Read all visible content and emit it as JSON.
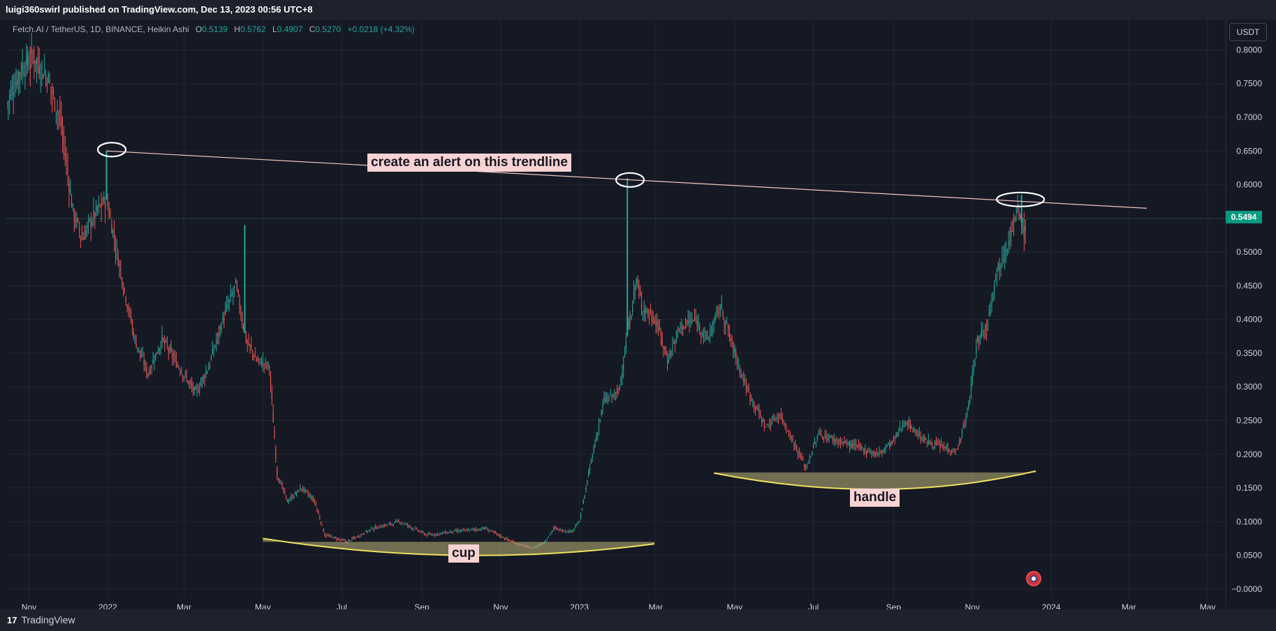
{
  "header": {
    "text": "luigi360swirl published on TradingView.com, Dec 13, 2023 00:56 UTC+8"
  },
  "legend": {
    "symbol": "Fetch.AI / TetherUS, 1D, BINANCE, Heikin Ashi",
    "o_label": "O",
    "o_value": "0.5139",
    "h_label": "H",
    "h_value": "0.5762",
    "l_label": "L",
    "l_value": "0.4907",
    "c_label": "C",
    "c_value": "0.5270",
    "change": "+0.0218 (+4.32%)"
  },
  "currency_button": "USDT",
  "last_price": "0.5494",
  "annotations": {
    "trendline_note": "create an alert on this trendline",
    "cup_label": "cup",
    "handle_label": "handle"
  },
  "footer": {
    "brand": "TradingView",
    "logo": "17"
  },
  "colors": {
    "up": "#26a69a",
    "down": "#ef5350",
    "background": "#151924",
    "note_bg": "#f9d3d3",
    "price_tag": "#089981"
  },
  "chart_data": {
    "type": "candlestick",
    "title": "Fetch.AI / TetherUS, 1D, BINANCE, Heikin Ashi",
    "y_ticks": [
      "0.8000",
      "0.7500",
      "0.7000",
      "0.6500",
      "0.6000",
      "0.5500",
      "0.5000",
      "0.4500",
      "0.4000",
      "0.3500",
      "0.3000",
      "0.2500",
      "0.2000",
      "0.1500",
      "0.1000",
      "0.0500",
      "−0.0000"
    ],
    "y_tick_values": [
      0.8,
      0.75,
      0.7,
      0.65,
      0.6,
      0.55,
      0.5,
      0.45,
      0.4,
      0.35,
      0.3,
      0.25,
      0.2,
      0.15,
      0.1,
      0.05,
      0
    ],
    "ylim": [
      -0.025,
      0.845
    ],
    "x_ticks": [
      "Nov",
      "2022",
      "Mar",
      "May",
      "Jul",
      "Sep",
      "Nov",
      "2023",
      "Mar",
      "May",
      "Jul",
      "Sep",
      "Nov",
      "2024",
      "Mar",
      "May"
    ],
    "x_tick_dates": [
      "2021-11-01",
      "2022-01-01",
      "2022-03-01",
      "2022-05-01",
      "2022-07-01",
      "2022-09-01",
      "2022-11-01",
      "2023-01-01",
      "2023-03-01",
      "2023-05-01",
      "2023-07-01",
      "2023-09-01",
      "2023-11-01",
      "2024-01-01",
      "2024-03-01",
      "2024-05-01"
    ],
    "xlim": [
      "2021-10-15",
      "2024-05-15"
    ],
    "price_path": [
      [
        "2021-10-15",
        0.72
      ],
      [
        "2021-10-25",
        0.77
      ],
      [
        "2021-11-05",
        0.79
      ],
      [
        "2021-11-15",
        0.76
      ],
      [
        "2021-11-25",
        0.7
      ],
      [
        "2021-12-05",
        0.56
      ],
      [
        "2021-12-12",
        0.52
      ],
      [
        "2021-12-20",
        0.55
      ],
      [
        "2021-12-31",
        0.58
      ],
      [
        "2022-01-10",
        0.48
      ],
      [
        "2022-01-22",
        0.37
      ],
      [
        "2022-02-01",
        0.32
      ],
      [
        "2022-02-12",
        0.37
      ],
      [
        "2022-02-25",
        0.33
      ],
      [
        "2022-03-10",
        0.29
      ],
      [
        "2022-03-20",
        0.33
      ],
      [
        "2022-03-31",
        0.4
      ],
      [
        "2022-04-10",
        0.45
      ],
      [
        "2022-04-18",
        0.37
      ],
      [
        "2022-04-26",
        0.34
      ],
      [
        "2022-05-06",
        0.33
      ],
      [
        "2022-05-12",
        0.17
      ],
      [
        "2022-05-20",
        0.13
      ],
      [
        "2022-05-31",
        0.15
      ],
      [
        "2022-06-10",
        0.13
      ],
      [
        "2022-06-18",
        0.08
      ],
      [
        "2022-07-05",
        0.07
      ],
      [
        "2022-07-25",
        0.09
      ],
      [
        "2022-08-15",
        0.1
      ],
      [
        "2022-09-05",
        0.08
      ],
      [
        "2022-09-25",
        0.085
      ],
      [
        "2022-10-20",
        0.09
      ],
      [
        "2022-11-10",
        0.07
      ],
      [
        "2022-11-25",
        0.06
      ],
      [
        "2022-12-05",
        0.07
      ],
      [
        "2022-12-12",
        0.09
      ],
      [
        "2022-12-25",
        0.085
      ],
      [
        "2023-01-01",
        0.1
      ],
      [
        "2023-01-10",
        0.19
      ],
      [
        "2023-01-20",
        0.28
      ],
      [
        "2023-01-31",
        0.29
      ],
      [
        "2023-02-08",
        0.39
      ],
      [
        "2023-02-14",
        0.46
      ],
      [
        "2023-02-18",
        0.42
      ],
      [
        "2023-03-01",
        0.4
      ],
      [
        "2023-03-10",
        0.34
      ],
      [
        "2023-03-20",
        0.39
      ],
      [
        "2023-04-01",
        0.4
      ],
      [
        "2023-04-10",
        0.37
      ],
      [
        "2023-04-20",
        0.42
      ],
      [
        "2023-05-01",
        0.35
      ],
      [
        "2023-05-10",
        0.3
      ],
      [
        "2023-05-25",
        0.24
      ],
      [
        "2023-06-05",
        0.26
      ],
      [
        "2023-06-15",
        0.22
      ],
      [
        "2023-06-25",
        0.18
      ],
      [
        "2023-07-05",
        0.23
      ],
      [
        "2023-07-20",
        0.22
      ],
      [
        "2023-08-05",
        0.21
      ],
      [
        "2023-08-20",
        0.2
      ],
      [
        "2023-09-01",
        0.22
      ],
      [
        "2023-09-10",
        0.25
      ],
      [
        "2023-09-25",
        0.22
      ],
      [
        "2023-10-10",
        0.21
      ],
      [
        "2023-10-20",
        0.205
      ],
      [
        "2023-10-28",
        0.26
      ],
      [
        "2023-11-05",
        0.37
      ],
      [
        "2023-11-12",
        0.39
      ],
      [
        "2023-11-18",
        0.46
      ],
      [
        "2023-11-25",
        0.5
      ],
      [
        "2023-12-01",
        0.53
      ],
      [
        "2023-12-06",
        0.56
      ],
      [
        "2023-12-12",
        0.527
      ]
    ],
    "spikes": [
      {
        "date": "2021-12-31",
        "high": 0.65
      },
      {
        "date": "2023-02-07",
        "high": 0.61
      },
      {
        "date": "2022-04-17",
        "high": 0.54
      },
      {
        "date": "2023-12-09",
        "high": 0.585
      }
    ],
    "trendline": {
      "start": [
        "2021-12-31",
        0.65
      ],
      "end": [
        "2024-03-15",
        0.565
      ],
      "color": "#f2c4c4"
    },
    "last_close": 0.5494,
    "cup": {
      "start": [
        "2022-05-01",
        0.075
      ],
      "bottom": [
        "2022-09-30",
        0.05
      ],
      "end": [
        "2023-02-28",
        0.067
      ],
      "level": 0.07
    },
    "handle": {
      "start": [
        "2023-04-15",
        0.172
      ],
      "bottom": [
        "2023-08-25",
        0.148
      ],
      "end": [
        "2023-12-20",
        0.175
      ],
      "level": 0.173
    },
    "highlight_circles": [
      {
        "date": "2022-01-03",
        "price": 0.652
      },
      {
        "date": "2023-02-08",
        "price": 0.607
      },
      {
        "date": "2023-12-06",
        "price": 0.578
      }
    ],
    "grid": true
  }
}
